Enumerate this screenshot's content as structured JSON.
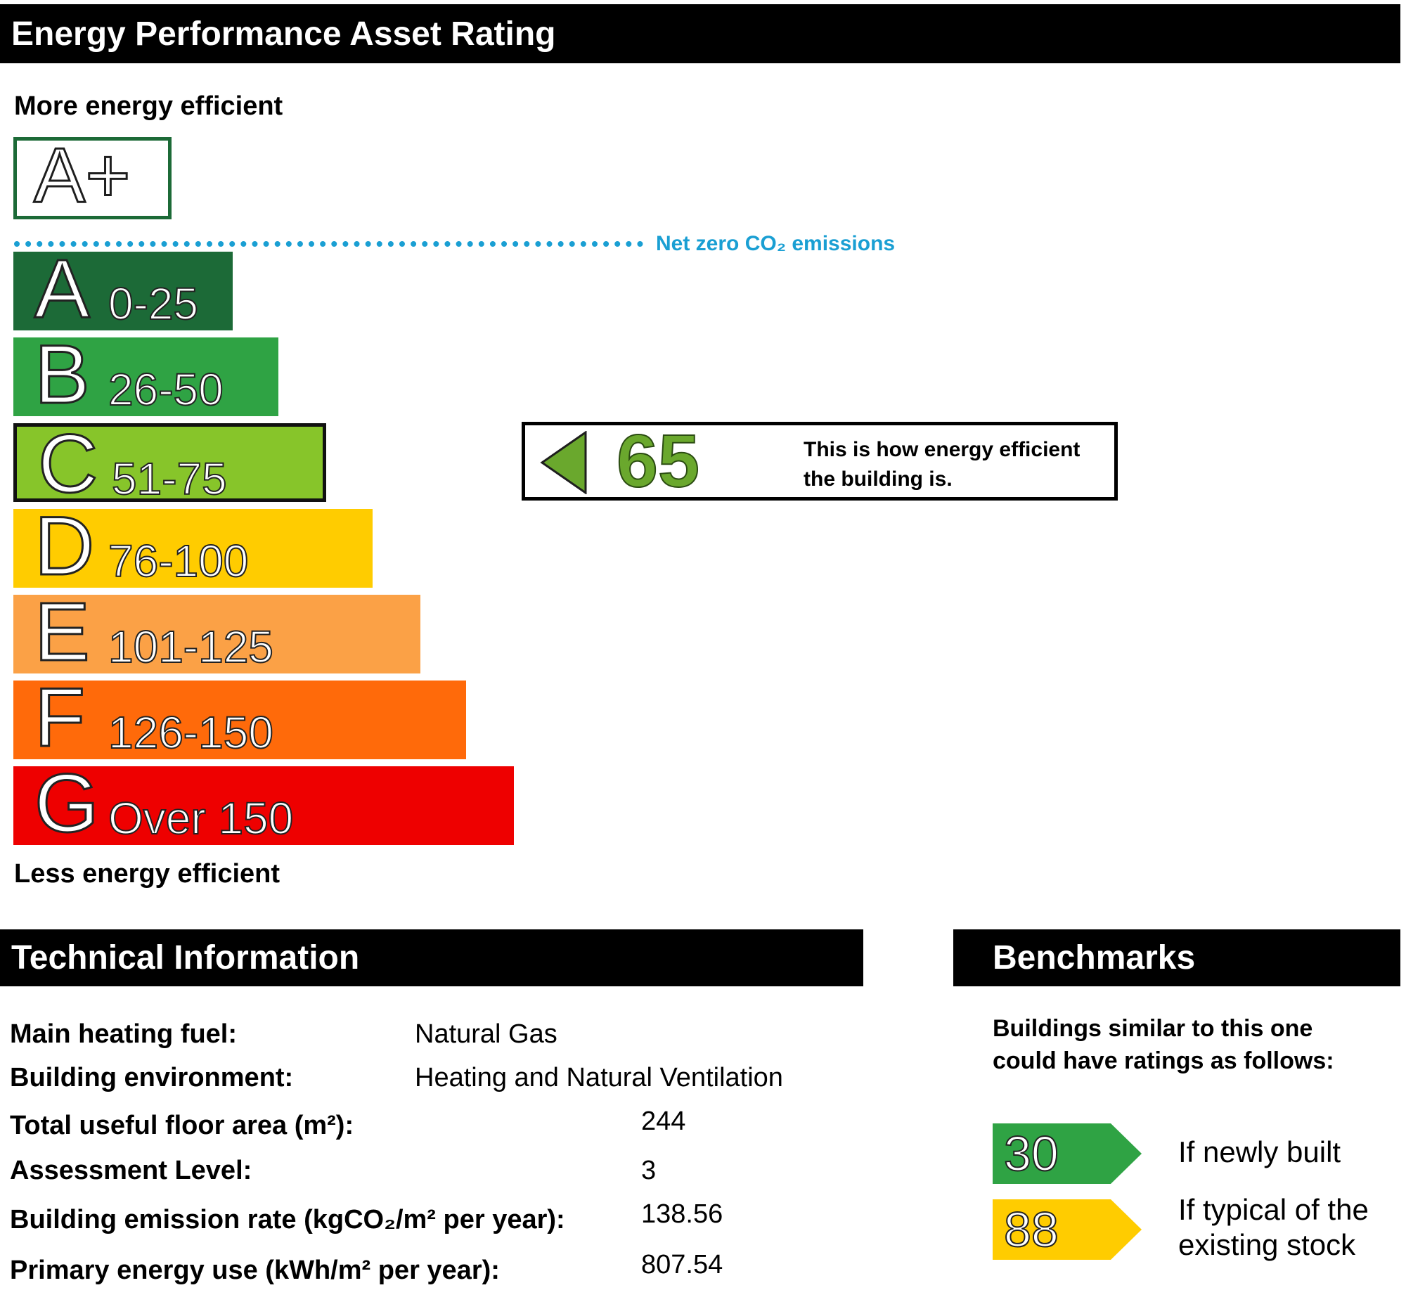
{
  "header": {
    "title": "Energy Performance Asset Rating"
  },
  "scale": {
    "more_label": "More energy efficient",
    "less_label": "Less energy efficient",
    "aplus_label": "A+",
    "net_zero_label": "Net zero CO₂ emissions",
    "bands": [
      {
        "letter": "A",
        "range": "0-25",
        "color": "#1c6a37"
      },
      {
        "letter": "B",
        "range": "26-50",
        "color": "#2fa344"
      },
      {
        "letter": "C",
        "range": "51-75",
        "color": "#87c52a"
      },
      {
        "letter": "D",
        "range": "76-100",
        "color": "#ffcc00"
      },
      {
        "letter": "E",
        "range": "101-125",
        "color": "#fba146"
      },
      {
        "letter": "F",
        "range": "126-150",
        "color": "#ff6a0a"
      },
      {
        "letter": "G",
        "range": "Over 150",
        "color": "#ee0000"
      }
    ]
  },
  "indicator": {
    "value": "65",
    "text": "This is how energy efficient the building is.",
    "color": "#6aa82d"
  },
  "technical": {
    "title": "Technical Information",
    "rows": [
      {
        "label": "Main heating fuel:",
        "value": "Natural Gas"
      },
      {
        "label": "Building environment:",
        "value": "Heating and Natural Ventilation"
      },
      {
        "label": "Total useful floor area (m²):",
        "value": "244"
      },
      {
        "label": "Assessment Level:",
        "value": "3"
      },
      {
        "label": "Building emission rate (kgCO₂/m² per year):",
        "value": "138.56"
      },
      {
        "label": "Primary energy use (kWh/m² per year):",
        "value": "807.54"
      }
    ]
  },
  "benchmarks": {
    "title": "Benchmarks",
    "description": "Buildings similar to this one could have ratings as follows:",
    "items": [
      {
        "value": "30",
        "label": "If newly built",
        "color": "#2fa344"
      },
      {
        "value": "88",
        "label": "If typical of the existing stock",
        "color": "#ffcc00"
      }
    ]
  }
}
